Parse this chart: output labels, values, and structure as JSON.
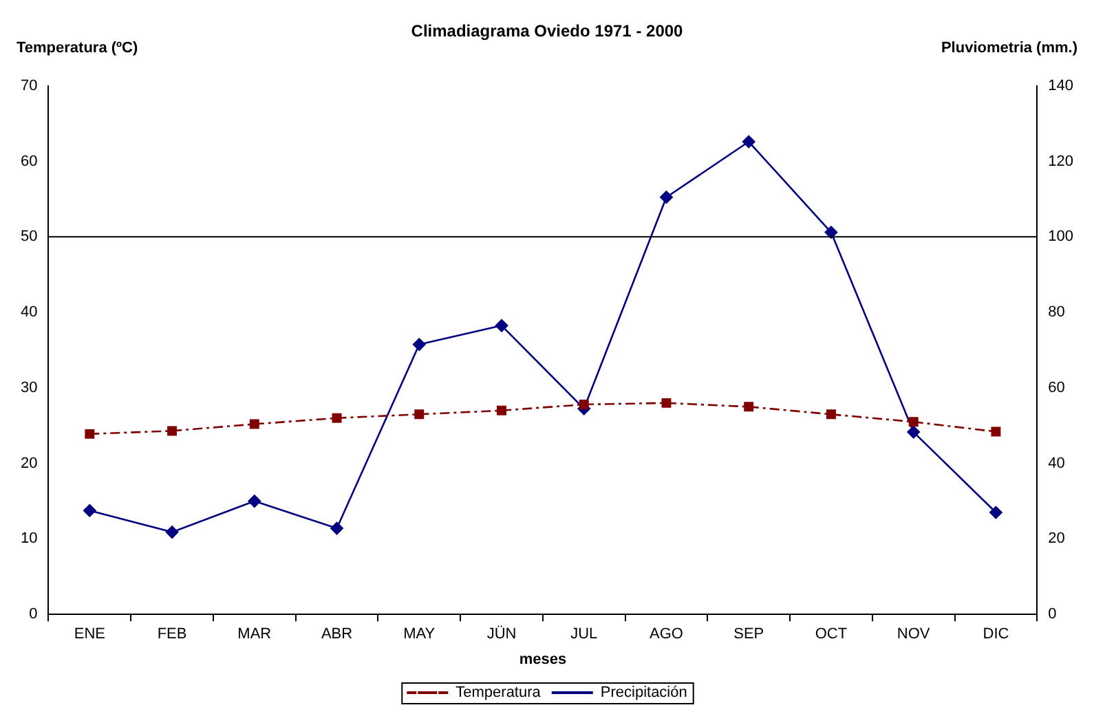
{
  "chart_data": {
    "type": "line",
    "title": "Climadiagrama Oviedo 1971 - 2000",
    "xlabel": "meses",
    "ylabel": "Temperatura (ºC)",
    "y2label": "Pluviometria (mm.)",
    "categories": [
      "ENE",
      "FEB",
      "MAR",
      "ABR",
      "MAY",
      "JÜN",
      "JUL",
      "AGO",
      "SEP",
      "OCT",
      "NOV",
      "DIC"
    ],
    "series": [
      {
        "name": "Temperatura",
        "color": "#800000",
        "marker": "square",
        "line_style": "dashed",
        "values": [
          23.9,
          24.3,
          25.2,
          26.0,
          26.5,
          27.0,
          27.8,
          28.0,
          27.5,
          26.5,
          25.5,
          24.2
        ]
      },
      {
        "name": "Precipitación",
        "color": "#000080",
        "marker": "diamond",
        "line_style": "solid",
        "axis": "y2",
        "values": [
          27.5,
          21.8,
          30.0,
          22.8,
          71.5,
          76.5,
          54.5,
          110.5,
          125.2,
          101.2,
          48.3,
          27.0
        ]
      }
    ],
    "ylim": [
      0,
      70
    ],
    "yticks": [
      0,
      10,
      20,
      30,
      40,
      50,
      60,
      70
    ],
    "y2lim": [
      0,
      140
    ],
    "y2ticks": [
      0,
      20,
      40,
      60,
      80,
      100,
      120,
      140
    ],
    "ref_lines": [
      {
        "axis": "y",
        "value": 50,
        "color": "#000000"
      }
    ],
    "grid": false,
    "legend": "bottom"
  }
}
